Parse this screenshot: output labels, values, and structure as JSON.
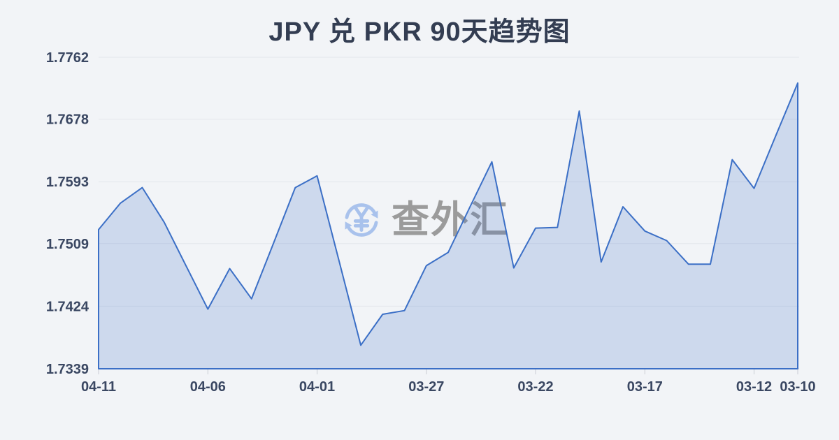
{
  "chart_data": {
    "type": "area",
    "title": "JPY 兑 PKR 90天趋势图",
    "xlabel": "",
    "ylabel": "",
    "x": [
      "04-11",
      "04-10",
      "04-09",
      "04-08",
      "04-07",
      "04-06",
      "04-05",
      "04-04",
      "04-03",
      "04-02",
      "04-01",
      "03-31",
      "03-30",
      "03-29",
      "03-28",
      "03-27",
      "03-26",
      "03-25",
      "03-24",
      "03-23",
      "03-22",
      "03-21",
      "03-20",
      "03-19",
      "03-18",
      "03-17",
      "03-16",
      "03-15",
      "03-14",
      "03-13",
      "03-12",
      "03-11",
      "03-10"
    ],
    "series": [
      {
        "name": "JPY/PKR",
        "values": [
          1.7528,
          1.7564,
          1.7585,
          1.7538,
          1.7479,
          1.742,
          1.7475,
          1.7434,
          1.7509,
          1.7585,
          1.7601,
          1.7486,
          1.7371,
          1.7413,
          1.7418,
          1.7479,
          1.7497,
          1.7559,
          1.762,
          1.7476,
          1.753,
          1.7531,
          1.7689,
          1.7484,
          1.7559,
          1.7526,
          1.7513,
          1.7481,
          1.7481,
          1.7623,
          1.7584,
          1.7656,
          1.7727
        ]
      }
    ],
    "y_ticks": [
      1.7762,
      1.7678,
      1.7593,
      1.7509,
      1.7424,
      1.7339
    ],
    "ylim": [
      1.7339,
      1.7762
    ],
    "x_tick_indices": [
      0,
      5,
      10,
      15,
      20,
      25,
      30,
      32
    ],
    "x_tick_labels": [
      "04-11",
      "04-06",
      "04-01",
      "03-27",
      "03-22",
      "03-17",
      "03-12",
      "03-10"
    ],
    "grid": true,
    "legend": "none",
    "x_order": "newest-to-oldest"
  },
  "watermark": {
    "text": "查外汇",
    "icon": "yen-exchange-icon"
  },
  "colors": {
    "background": "#f2f4f7",
    "line": "#3b6fc6",
    "fill": "rgba(59,111,198,0.2)",
    "grid": "#e3e6eb",
    "axis_line": "#d7dadf",
    "tick": "#c9cdd4",
    "axis_text": "#3a4762",
    "title_text": "#333d52",
    "watermark_text": "#9b9b9b",
    "watermark_icon": "#a9c2ec"
  }
}
